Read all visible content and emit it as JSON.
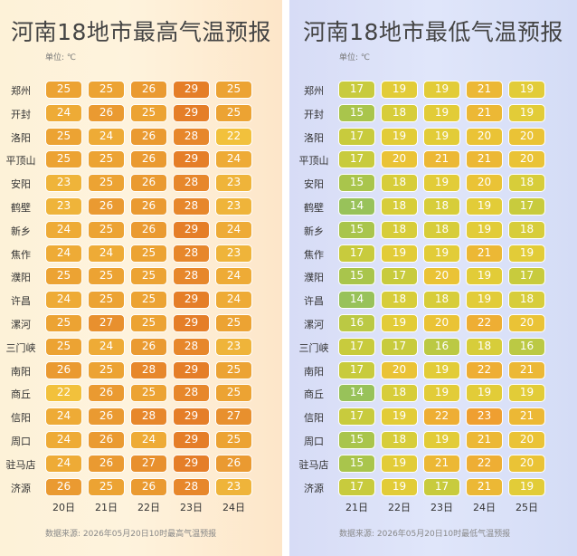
{
  "chart_data": [
    {
      "type": "heatmap",
      "title": "河南18地市最高气温预报",
      "unit_label": "单位: ℃",
      "rows": [
        "郑州",
        "开封",
        "洛阳",
        "平顶山",
        "安阳",
        "鹤壁",
        "新乡",
        "焦作",
        "濮阳",
        "许昌",
        "漯河",
        "三门峡",
        "南阳",
        "商丘",
        "信阳",
        "周口",
        "驻马店",
        "济源"
      ],
      "columns": [
        "20日",
        "21日",
        "22日",
        "23日",
        "24日"
      ],
      "values": [
        [
          25,
          25,
          26,
          29,
          25
        ],
        [
          24,
          26,
          25,
          29,
          25
        ],
        [
          25,
          24,
          26,
          28,
          22
        ],
        [
          25,
          25,
          26,
          29,
          24
        ],
        [
          23,
          25,
          26,
          28,
          23
        ],
        [
          23,
          26,
          26,
          28,
          23
        ],
        [
          24,
          25,
          26,
          29,
          24
        ],
        [
          24,
          24,
          25,
          28,
          23
        ],
        [
          25,
          25,
          25,
          28,
          24
        ],
        [
          24,
          25,
          25,
          29,
          24
        ],
        [
          25,
          27,
          25,
          29,
          25
        ],
        [
          25,
          24,
          26,
          28,
          23
        ],
        [
          26,
          25,
          28,
          29,
          25
        ],
        [
          22,
          26,
          25,
          28,
          25
        ],
        [
          24,
          26,
          28,
          29,
          27
        ],
        [
          24,
          26,
          24,
          29,
          25
        ],
        [
          24,
          26,
          27,
          29,
          26
        ],
        [
          26,
          25,
          26,
          28,
          23
        ]
      ],
      "source": "数据来源: 2026年05月20日10时最高气温预报"
    },
    {
      "type": "heatmap",
      "title": "河南18地市最低气温预报",
      "unit_label": "单位: ℃",
      "rows": [
        "郑州",
        "开封",
        "洛阳",
        "平顶山",
        "安阳",
        "鹤壁",
        "新乡",
        "焦作",
        "濮阳",
        "许昌",
        "漯河",
        "三门峡",
        "南阳",
        "商丘",
        "信阳",
        "周口",
        "驻马店",
        "济源"
      ],
      "columns": [
        "21日",
        "22日",
        "23日",
        "24日",
        "25日"
      ],
      "values": [
        [
          17,
          19,
          19,
          21,
          19
        ],
        [
          15,
          18,
          19,
          21,
          19
        ],
        [
          17,
          19,
          19,
          20,
          20
        ],
        [
          17,
          20,
          21,
          21,
          20
        ],
        [
          15,
          18,
          19,
          20,
          18
        ],
        [
          14,
          18,
          18,
          19,
          17
        ],
        [
          15,
          18,
          18,
          19,
          18
        ],
        [
          17,
          19,
          19,
          21,
          19
        ],
        [
          15,
          17,
          20,
          19,
          17
        ],
        [
          14,
          18,
          18,
          19,
          18
        ],
        [
          16,
          19,
          20,
          22,
          20
        ],
        [
          17,
          17,
          16,
          18,
          16
        ],
        [
          17,
          20,
          19,
          22,
          21
        ],
        [
          14,
          18,
          19,
          19,
          19
        ],
        [
          17,
          19,
          22,
          23,
          21
        ],
        [
          15,
          18,
          19,
          21,
          20
        ],
        [
          15,
          19,
          21,
          22,
          20
        ],
        [
          17,
          19,
          17,
          21,
          19
        ]
      ],
      "source": "数据来源: 2026年05月20日10时最低气温预报"
    }
  ],
  "colors": {
    "high": {
      "22": "#f2c13c",
      "23": "#efb43a",
      "24": "#eeab36",
      "25": "#eca333",
      "26": "#ea9a31",
      "27": "#e8902e",
      "28": "#e7872b",
      "29": "#e57e28"
    },
    "low": {
      "14": "#98c25a",
      "15": "#a9c54c",
      "16": "#bbc944",
      "17": "#c8cb3d",
      "18": "#d7cd3a",
      "19": "#e2cc38",
      "20": "#eac336",
      "21": "#ecb835",
      "22": "#eeae34",
      "23": "#ef9f31"
    }
  }
}
